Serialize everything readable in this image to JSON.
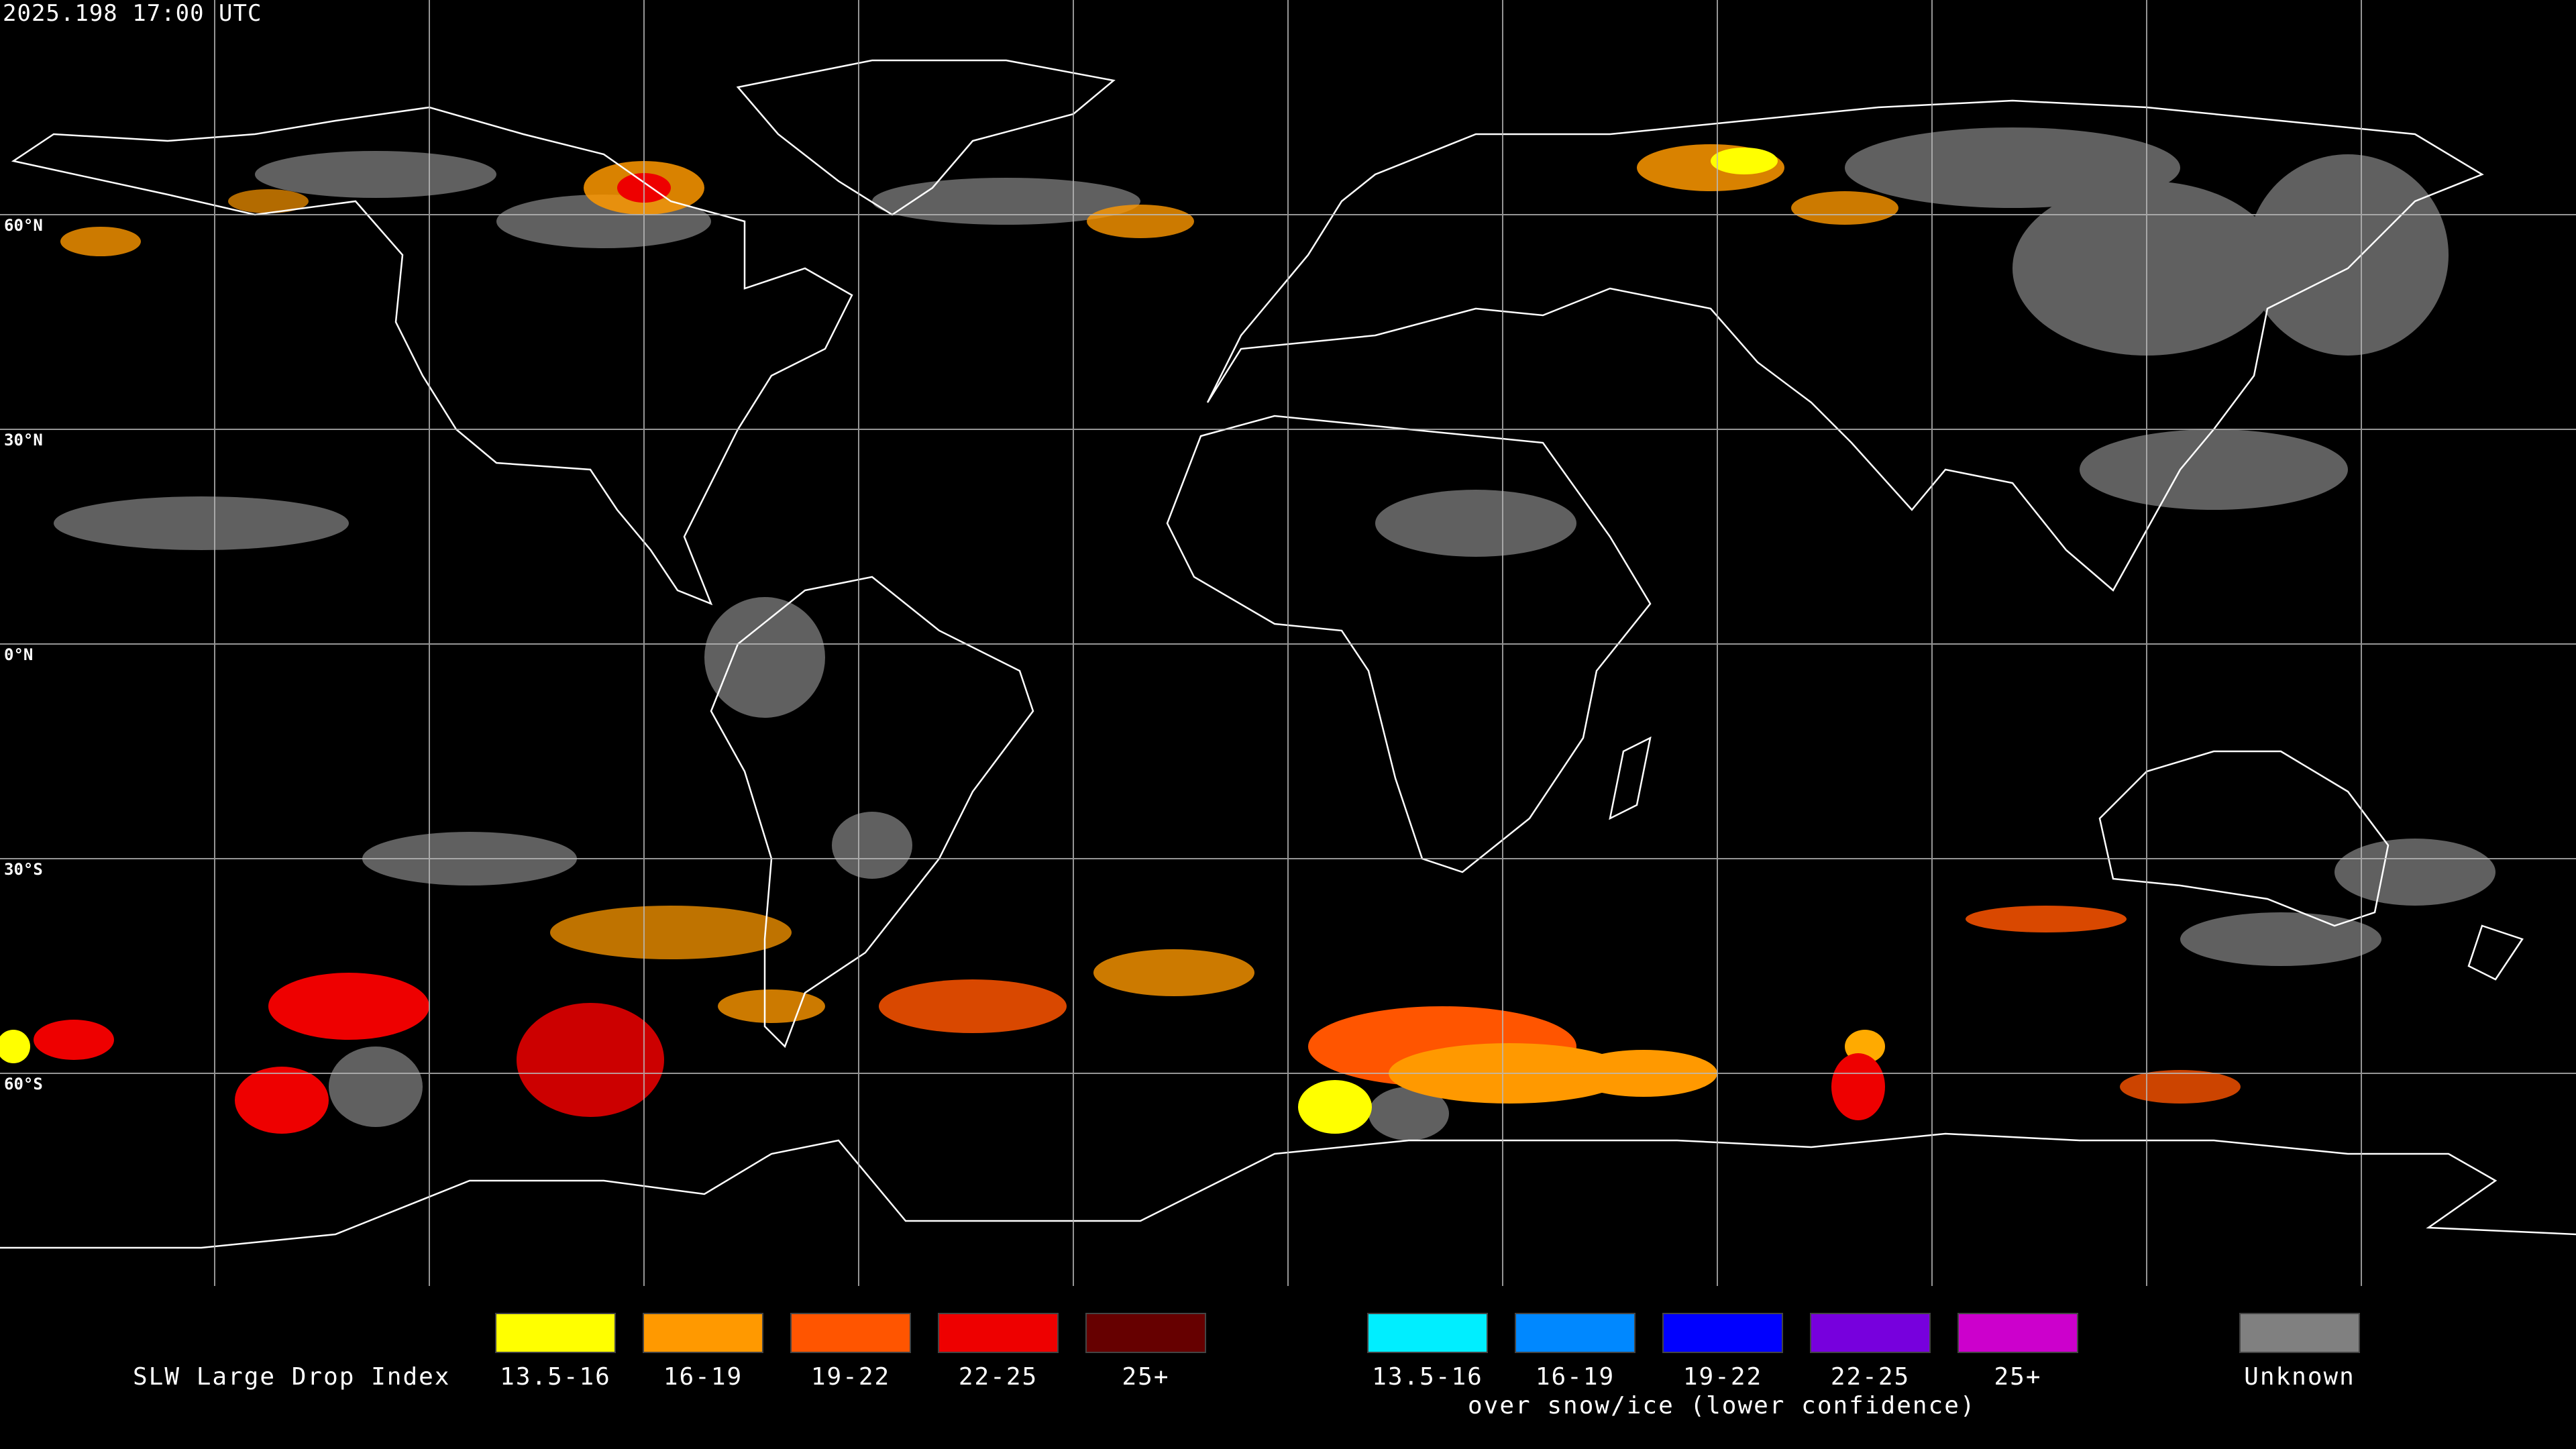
{
  "header": {
    "timestamp": "2025.198 17:00 UTC"
  },
  "map": {
    "background_color": "#000000",
    "latitude_labels": [
      "60°N",
      "30°N",
      "0°N",
      "30°S",
      "60°S"
    ],
    "coastline_color": "#ffffff",
    "grid_color": "#bbbbbb"
  },
  "legend": {
    "title": "SLW Large Drop Index",
    "standard_scale": [
      {
        "label": "13.5-16",
        "color": "#ffff00"
      },
      {
        "label": "16-19",
        "color": "#ff9900"
      },
      {
        "label": "19-22",
        "color": "#ff5500"
      },
      {
        "label": "22-25",
        "color": "#ee0000"
      },
      {
        "label": "25+",
        "color": "#660000"
      }
    ],
    "snow_ice_scale": [
      {
        "label": "13.5-16",
        "color": "#00eeff"
      },
      {
        "label": "16-19",
        "color": "#0088ff"
      },
      {
        "label": "19-22",
        "color": "#0000ff"
      },
      {
        "label": "22-25",
        "color": "#7700dd"
      },
      {
        "label": "25+",
        "color": "#cc00cc"
      }
    ],
    "snow_ice_note": "over snow/ice (lower confidence)",
    "unknown": {
      "label": "Unknown",
      "color": "#808080"
    }
  }
}
